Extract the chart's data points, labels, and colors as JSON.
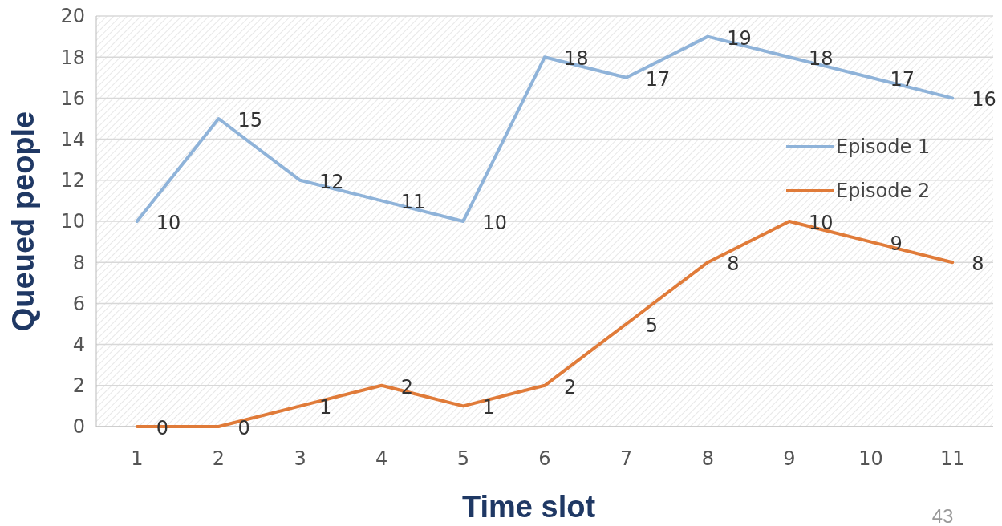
{
  "chart_data": {
    "type": "line",
    "xlabel": "Time slot",
    "ylabel": "Queued people",
    "categories": [
      "1",
      "2",
      "3",
      "4",
      "5",
      "6",
      "7",
      "8",
      "9",
      "10",
      "11"
    ],
    "series": [
      {
        "name": "Episode 1",
        "color": "#8fb3d9",
        "values": [
          10,
          15,
          12,
          11,
          10,
          18,
          17,
          19,
          18,
          17,
          16
        ]
      },
      {
        "name": "Episode 2",
        "color": "#e07b39",
        "values": [
          0,
          0,
          1,
          2,
          1,
          2,
          5,
          8,
          10,
          9,
          8
        ]
      }
    ],
    "ylim": [
      0,
      20
    ],
    "yticks": [
      0,
      2,
      4,
      6,
      8,
      10,
      12,
      14,
      16,
      18,
      20
    ],
    "grid": "y",
    "legend": "right",
    "data_labels": true,
    "marker": "none",
    "line_style": "solid",
    "annotations": [
      "43"
    ]
  }
}
